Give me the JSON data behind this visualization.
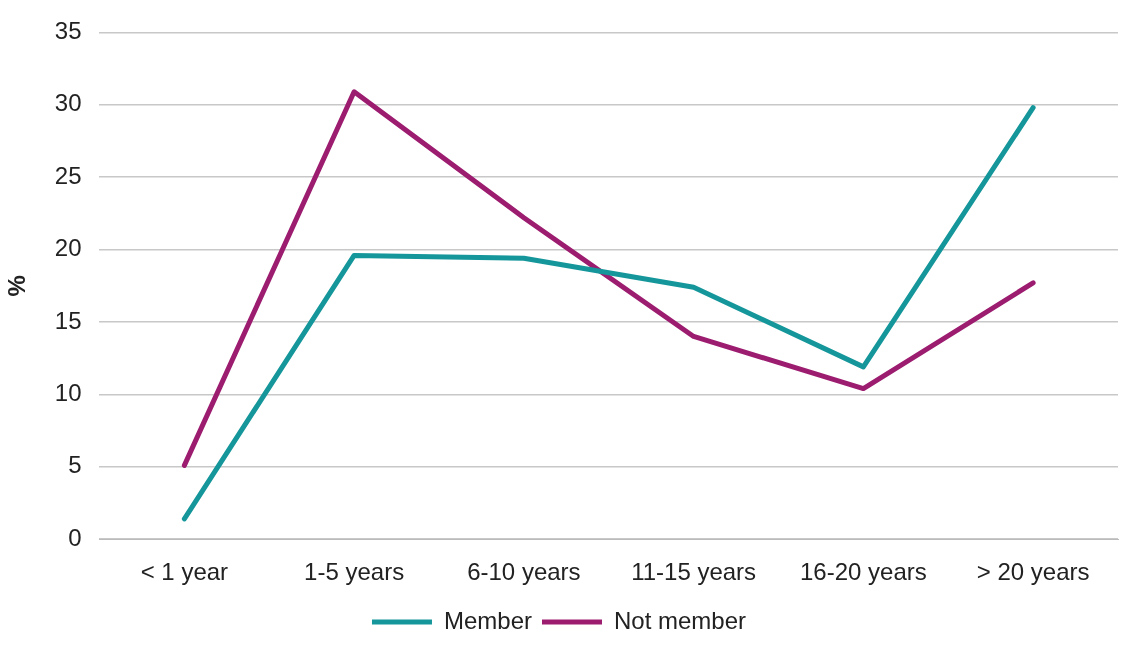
{
  "chart_data": {
    "type": "line",
    "ylabel": "%",
    "categories": [
      "< 1 year",
      "1-5 years",
      "6-10 years",
      "11-15 years",
      "16-20 years",
      "> 20 years"
    ],
    "series": [
      {
        "name": "Member",
        "color": "#14969a",
        "values": [
          1.4,
          19.6,
          19.4,
          17.4,
          11.9,
          29.8
        ]
      },
      {
        "name": "Not member",
        "color": "#9c1c6f",
        "values": [
          5.1,
          30.9,
          22.2,
          14.0,
          10.4,
          17.7
        ]
      }
    ],
    "ylim": [
      0,
      35
    ],
    "yticks": [
      0,
      5,
      10,
      15,
      20,
      25,
      30,
      35
    ],
    "grid": "y",
    "legend": "bottom",
    "marker": "none",
    "line_style": "solid"
  }
}
